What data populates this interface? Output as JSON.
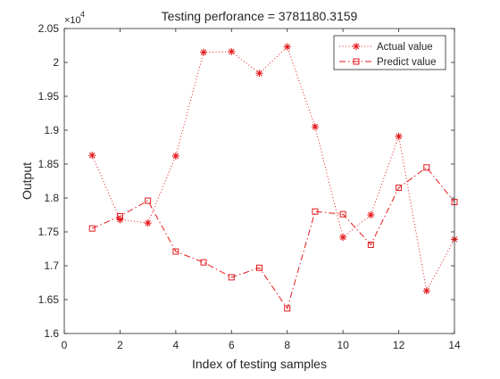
{
  "chart_data": {
    "type": "line",
    "title": "Testing perforance = 3781180.3159",
    "xlabel": "Index of testing samples",
    "ylabel": "Output",
    "xlim": [
      0,
      14
    ],
    "ylim": [
      16000,
      20500
    ],
    "x_ticks": [
      0,
      2,
      4,
      6,
      8,
      10,
      12,
      14
    ],
    "x_tick_labels": [
      "0",
      "2",
      "4",
      "6",
      "8",
      "10",
      "12",
      "14"
    ],
    "y_ticks": [
      16000,
      16500,
      17000,
      17500,
      18000,
      18500,
      19000,
      19500,
      20000,
      20500
    ],
    "y_tick_labels": [
      "1.6",
      "1.65",
      "1.7",
      "1.75",
      "1.8",
      "1.85",
      "1.9",
      "1.95",
      "2",
      "2.05"
    ],
    "y_exponent_label": "×10",
    "y_exponent_power": "4",
    "grid": false,
    "legend_position": "top-right",
    "x": [
      1,
      2,
      3,
      4,
      5,
      6,
      7,
      8,
      9,
      10,
      11,
      12,
      13,
      14
    ],
    "series": [
      {
        "name": "Actual value",
        "color": "#e31a1c",
        "line_style": "dotted",
        "marker": "asterisk",
        "values": [
          18630,
          17680,
          17630,
          18620,
          20150,
          20160,
          19840,
          20230,
          19050,
          17420,
          17750,
          18910,
          16630,
          17390
        ]
      },
      {
        "name": "Predict value",
        "color": "#e31a1c",
        "line_style": "dash-dot",
        "marker": "square",
        "values": [
          17550,
          17730,
          17960,
          17210,
          17050,
          16830,
          16970,
          16370,
          17800,
          17760,
          17310,
          18150,
          18450,
          17940
        ]
      }
    ]
  }
}
